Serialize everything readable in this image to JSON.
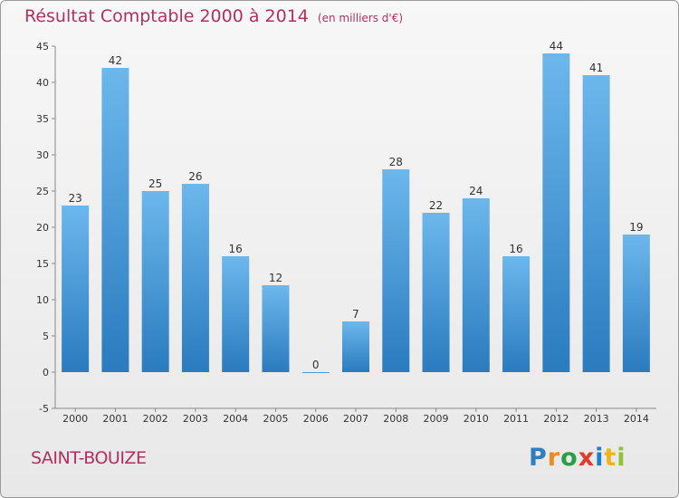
{
  "header": {
    "title": "Résultat Comptable 2000 à 2014",
    "unit": "(en milliers d'€)"
  },
  "footer": {
    "town": "SAINT-BOUIZE"
  },
  "logo": {
    "letters": [
      "P",
      "r",
      "o",
      "x",
      "i",
      "t",
      "i"
    ],
    "colors": [
      "#2f7ec0",
      "#f08a1e",
      "#2a9f48",
      "#e23a2a",
      "#1c7fc8",
      "#f0b419",
      "#8ec434"
    ]
  },
  "colors": {
    "bar_top": "#6cb7ec",
    "bar_bottom": "#2a7bbf",
    "title": "#b03060",
    "grid": "#cccccc"
  },
  "chart_data": {
    "type": "bar",
    "title": "Résultat Comptable 2000 à 2014",
    "subtitle": "(en milliers d'€)",
    "xlabel": "",
    "ylabel": "",
    "categories": [
      "2000",
      "2001",
      "2002",
      "2003",
      "2004",
      "2005",
      "2006",
      "2007",
      "2008",
      "2009",
      "2010",
      "2011",
      "2012",
      "2013",
      "2014"
    ],
    "values": [
      23,
      42,
      25,
      26,
      16,
      12,
      0,
      7,
      28,
      22,
      24,
      16,
      44,
      41,
      19
    ],
    "ylim": [
      -5,
      45
    ],
    "yticks": [
      -5,
      0,
      5,
      10,
      15,
      20,
      25,
      30,
      35,
      40,
      45
    ],
    "grid": false,
    "data_labels": true
  }
}
